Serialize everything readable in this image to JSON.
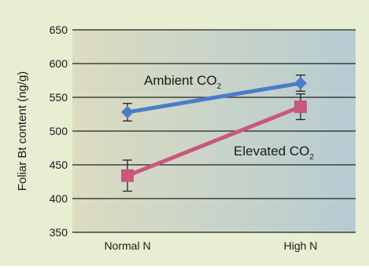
{
  "chart_data": {
    "type": "line",
    "ylabel": "Foliar Bt content (ng/g)",
    "xlabel": "",
    "categories": [
      "Normal N",
      "High N"
    ],
    "ylim": [
      350,
      650
    ],
    "yticks": [
      350,
      400,
      450,
      500,
      550,
      600,
      650
    ],
    "grid": true,
    "series": [
      {
        "name_main": "Ambient CO",
        "name_sub": "2",
        "values": [
          528,
          571
        ],
        "errors": [
          13,
          12
        ],
        "marker": "diamond",
        "color": "#4a7cc9"
      },
      {
        "name_main": "Elevated CO",
        "name_sub": "2",
        "values": [
          434,
          536
        ],
        "errors": [
          23,
          19
        ],
        "marker": "square",
        "color": "#c9577d"
      }
    ]
  },
  "colors": {
    "panel_bg": "#e8eed2",
    "gradient_left": "#dcdcbf",
    "gradient_right": "#b6ccd2",
    "axis": "#222222"
  }
}
